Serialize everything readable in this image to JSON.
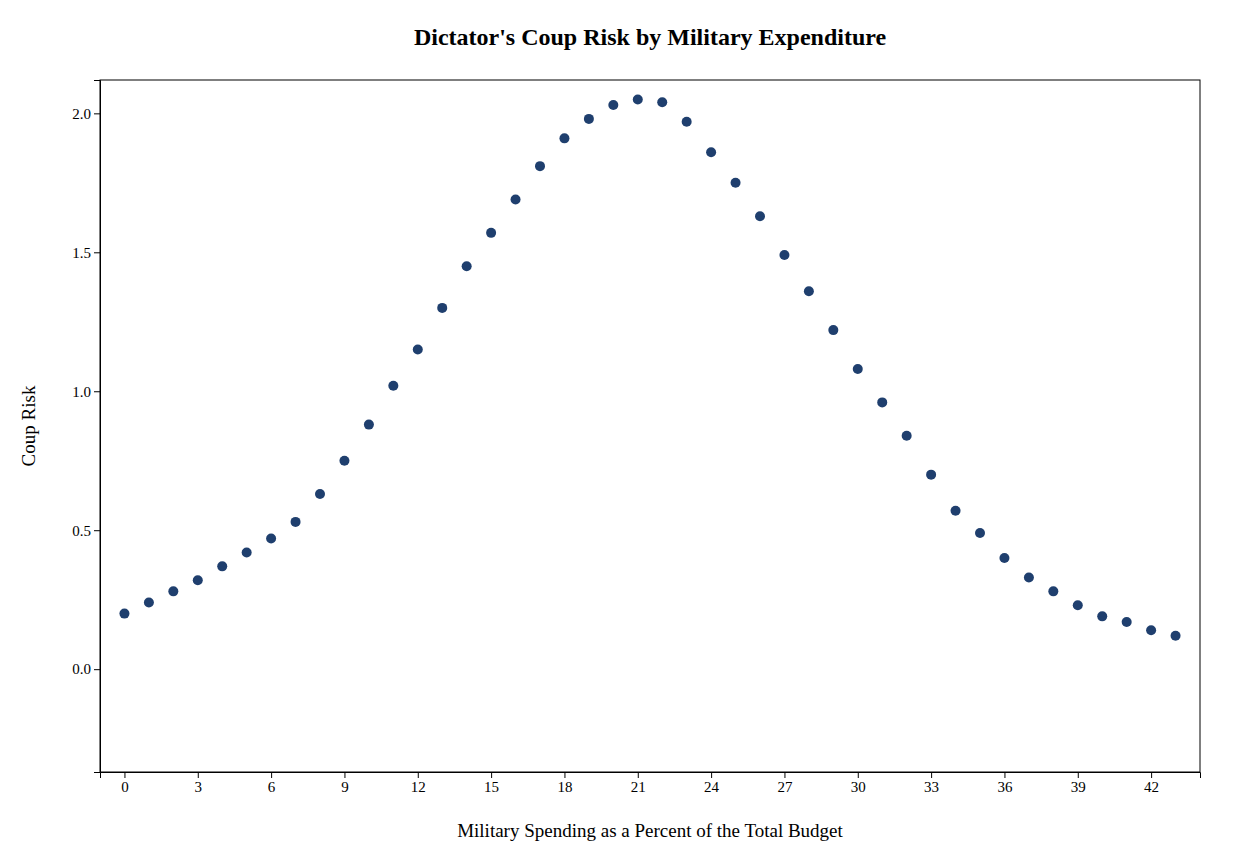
{
  "chart_data": {
    "type": "scatter",
    "title": "Dictator's Coup Risk by Military Expenditure",
    "xlabel": "Military Spending as a Percent of the Total Budget",
    "ylabel": "Coup Risk",
    "color": "#1F3F6E",
    "x": [
      0,
      1,
      2,
      3,
      4,
      5,
      6,
      7,
      8,
      9,
      10,
      11,
      12,
      13,
      14,
      15,
      16,
      17,
      18,
      19,
      20,
      21,
      22,
      23,
      24,
      25,
      26,
      27,
      28,
      29,
      30,
      31,
      32,
      33,
      34,
      35,
      36,
      37,
      38,
      39,
      40,
      41,
      42,
      43
    ],
    "values": [
      0.2,
      0.24,
      0.28,
      0.32,
      0.37,
      0.42,
      0.47,
      0.53,
      0.63,
      0.75,
      0.88,
      1.02,
      1.15,
      1.3,
      1.45,
      1.57,
      1.69,
      1.81,
      1.91,
      1.98,
      2.03,
      2.05,
      2.04,
      1.97,
      1.86,
      1.75,
      1.63,
      1.49,
      1.36,
      1.22,
      1.08,
      0.96,
      0.84,
      0.7,
      0.57,
      0.49,
      0.4,
      0.33,
      0.28,
      0.23,
      0.19,
      0.17,
      0.14,
      0.12
    ],
    "xlim": [
      -1,
      44
    ],
    "xticks": [
      0,
      3,
      6,
      9,
      12,
      15,
      18,
      21,
      24,
      27,
      30,
      33,
      36,
      39,
      42
    ],
    "ylim": [
      -0.37,
      2.12
    ],
    "yticks": [
      {
        "value": 0,
        "label": "0.0"
      },
      0.5,
      {
        "value": 1,
        "label": "1.0"
      },
      1.5,
      {
        "value": 2,
        "label": "2.0"
      }
    ],
    "grid": false
  }
}
